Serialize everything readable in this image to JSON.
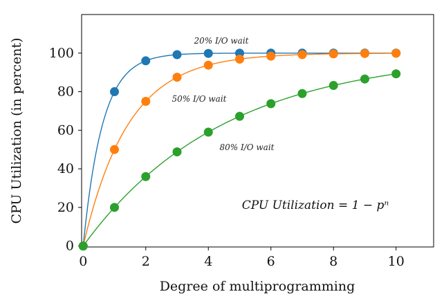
{
  "chart_data": {
    "type": "line",
    "xlabel": "Degree of multiprogramming",
    "ylabel": "CPU Utilization (in percent)",
    "xlim": [
      -0.05,
      11.2
    ],
    "ylim": [
      -0.5,
      120
    ],
    "x_ticks": [
      0,
      2,
      4,
      6,
      8,
      10
    ],
    "y_ticks": [
      0,
      20,
      40,
      60,
      80,
      100
    ],
    "grid": false,
    "annotation": "CPU Utilization = 1 − pⁿ",
    "series": [
      {
        "name": "20% I/O wait",
        "color": "#1f77b4",
        "x": [
          0,
          1,
          2,
          3,
          4,
          5,
          6,
          7,
          8,
          9,
          10
        ],
        "values": [
          0,
          80,
          96,
          99.2,
          99.84,
          99.97,
          99.99,
          100,
          100,
          100,
          100
        ]
      },
      {
        "name": "50% I/O wait",
        "color": "#ff7f0e",
        "x": [
          0,
          1,
          2,
          3,
          4,
          5,
          6,
          7,
          8,
          9,
          10
        ],
        "values": [
          0,
          50,
          75,
          87.5,
          93.75,
          96.88,
          98.44,
          99.22,
          99.61,
          99.8,
          99.9
        ]
      },
      {
        "name": "80% I/O wait",
        "color": "#2ca02c",
        "x": [
          0,
          1,
          2,
          3,
          4,
          5,
          6,
          7,
          8,
          9,
          10
        ],
        "values": [
          0,
          20,
          36,
          48.8,
          59.04,
          67.23,
          73.79,
          79.03,
          83.22,
          86.58,
          89.26
        ]
      }
    ]
  }
}
